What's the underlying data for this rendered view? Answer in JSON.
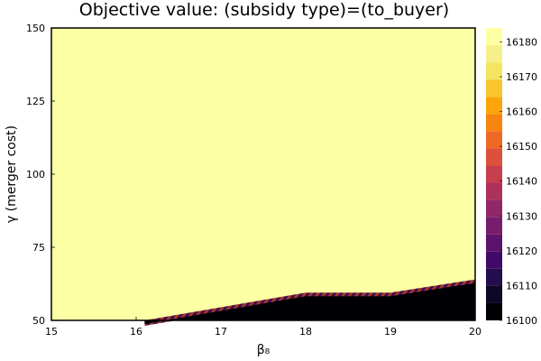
{
  "chart_data": {
    "type": "heatmap",
    "subtype": "filled-contour",
    "title": "Objective value: (subsidy type)=(to_buyer)",
    "xlabel": "β₈",
    "ylabel": "γ (merger cost)",
    "xlim": [
      15,
      20
    ],
    "ylim": [
      50,
      150
    ],
    "x_ticks": [
      "15",
      "16",
      "17",
      "18",
      "19",
      "20"
    ],
    "y_ticks": [
      "50",
      "75",
      "100",
      "125",
      "150"
    ],
    "x_tick_values": [
      15,
      16,
      17,
      18,
      19,
      20
    ],
    "y_tick_values": [
      50,
      75,
      100,
      125,
      150
    ],
    "grid": false,
    "colorbar": {
      "ticks": [
        "16100",
        "16110",
        "16120",
        "16130",
        "16140",
        "16150",
        "16160",
        "16170",
        "16180"
      ],
      "tick_values": [
        16100,
        16110,
        16120,
        16130,
        16140,
        16150,
        16160,
        16170,
        16180
      ],
      "range": [
        16100,
        16184
      ],
      "colormap": "inferno",
      "levels": 17
    },
    "regions": [
      {
        "name": "high",
        "value": 16184,
        "color": "#fcffa4"
      },
      {
        "name": "low",
        "value": 16100,
        "color": "#000004"
      }
    ],
    "boundary": {
      "x": [
        16.1,
        18.0,
        19.0,
        20.0
      ],
      "y": [
        50,
        59.5,
        59.5,
        64
      ]
    }
  }
}
